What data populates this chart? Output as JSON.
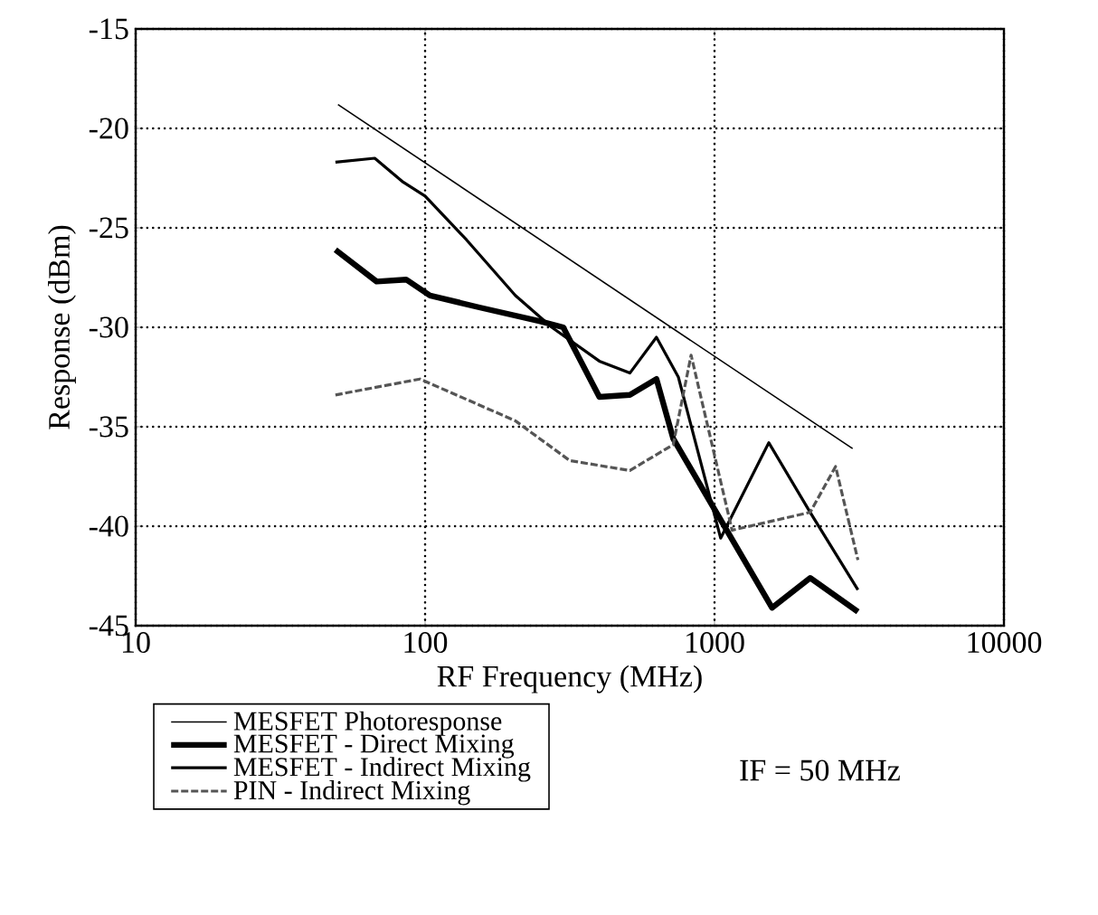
{
  "chart_data": {
    "type": "line",
    "xlabel": "RF Frequency (MHz)",
    "ylabel": "Response (dBm)",
    "log": "x",
    "grid": true,
    "legend": "bottom",
    "xlim": [
      10,
      10000
    ],
    "ylim": [
      -45,
      -15
    ],
    "xticks": [
      10,
      100,
      1000,
      10000
    ],
    "yticks": [
      -45,
      -40,
      -35,
      -30,
      -25,
      -20,
      -15
    ],
    "annotations": [
      "IF = 50 MHz"
    ],
    "series": [
      {
        "name": "MESFET Photoresponse",
        "color": "#000000",
        "line_style": "solid",
        "x": [
          50,
          3000
        ],
        "values": [
          -18.8,
          -36.1
        ]
      },
      {
        "name": "MESFET - Direct Mixing",
        "color": "#000000",
        "line_style": "solid",
        "x": [
          49,
          68,
          86,
          104,
          154,
          250,
          300,
          400,
          510,
          630,
          720,
          1580,
          2140,
          3130
        ],
        "values": [
          -26.1,
          -27.7,
          -27.6,
          -28.4,
          -29,
          -29.7,
          -30,
          -33.5,
          -33.4,
          -32.6,
          -35.6,
          -44.1,
          -42.6,
          -44.3
        ]
      },
      {
        "name": "MESFET - Indirect Mixing",
        "color": "#000000",
        "line_style": "solid",
        "x": [
          49,
          67,
          84,
          100,
          139,
          205,
          274,
          400,
          510,
          630,
          750,
          1050,
          1540,
          2140,
          3130
        ],
        "values": [
          -21.7,
          -21.5,
          -22.7,
          -23.4,
          -25.6,
          -28.4,
          -30,
          -31.7,
          -32.3,
          -30.5,
          -32.5,
          -40.6,
          -35.8,
          -39.3,
          -43.2
        ]
      },
      {
        "name": "PIN - Indirect Mixing",
        "color": "#555555",
        "line_style": "dashed",
        "x": [
          49,
          96,
          205,
          316,
          510,
          720,
          830,
          1150,
          2140,
          2620,
          3130
        ],
        "values": [
          -33.4,
          -32.6,
          -34.7,
          -36.7,
          -37.2,
          -35.9,
          -31.4,
          -40.2,
          -39.3,
          -37,
          -41.7
        ]
      }
    ]
  }
}
